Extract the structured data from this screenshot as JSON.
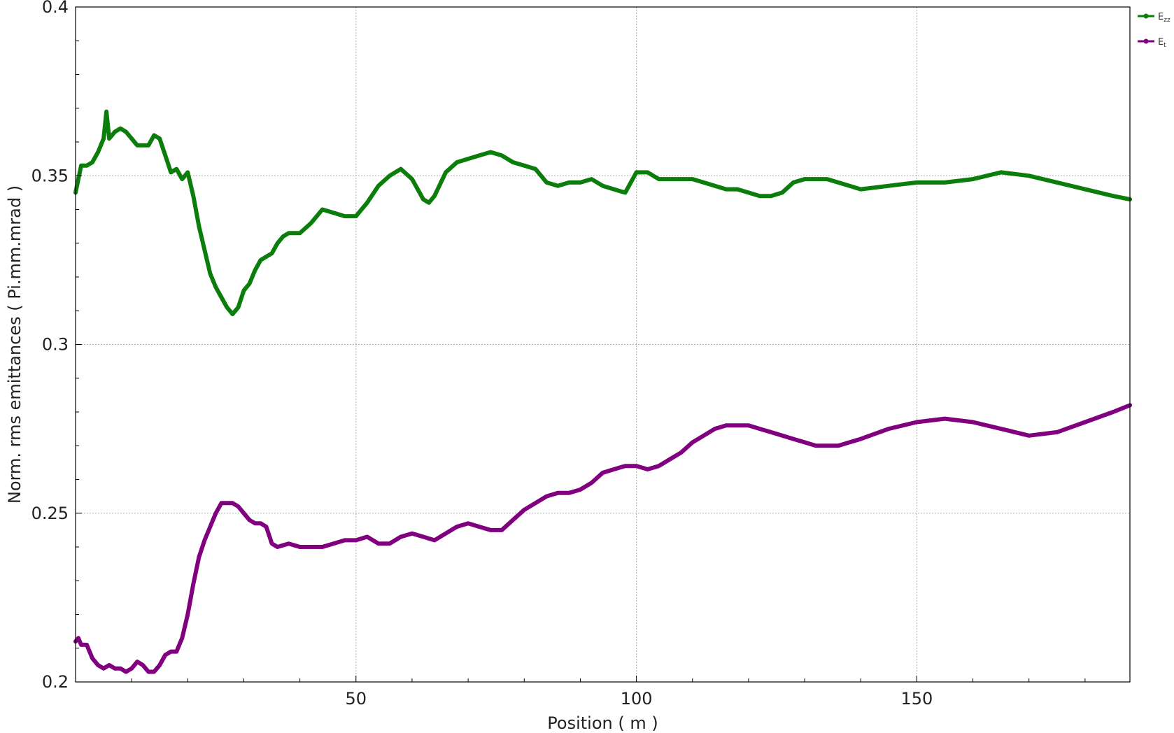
{
  "chart_data": {
    "type": "line",
    "title": "",
    "xlabel": "Position ( m )",
    "ylabel": "Norm. rms emittances ( Pi.mm.mrad )",
    "xlim": [
      0,
      188
    ],
    "ylim": [
      0.2,
      0.4
    ],
    "xticks": [
      50,
      100,
      150
    ],
    "xtick_labels": [
      "50",
      "100",
      "150"
    ],
    "yticks": [
      0.2,
      0.25,
      0.3,
      0.35,
      0.4
    ],
    "ytick_labels": [
      "0.2",
      "0.25",
      "0.3",
      "0.35",
      "0.4"
    ],
    "grid": true,
    "legend_position": "top-right",
    "series": [
      {
        "name": "E_zz",
        "legend_main": "E",
        "legend_sub": "zz",
        "color": "#0b7d0b",
        "x": [
          0,
          0.5,
          1,
          2,
          3,
          4,
          5,
          5.5,
          6,
          7,
          8,
          9,
          10,
          11,
          12,
          13,
          14,
          15,
          16,
          17,
          18,
          19,
          20,
          21,
          22,
          23,
          24,
          25,
          26,
          27,
          28,
          29,
          30,
          31,
          32,
          33,
          34,
          35,
          36,
          37,
          38,
          40,
          42,
          44,
          46,
          48,
          50,
          52,
          54,
          56,
          58,
          60,
          62,
          63,
          64,
          66,
          68,
          70,
          72,
          74,
          76,
          78,
          80,
          82,
          84,
          86,
          88,
          90,
          92,
          94,
          96,
          98,
          100,
          102,
          104,
          106,
          108,
          110,
          112,
          114,
          116,
          118,
          120,
          122,
          124,
          126,
          128,
          130,
          132,
          134,
          136,
          138,
          140,
          145,
          150,
          155,
          160,
          165,
          170,
          175,
          180,
          185,
          188
        ],
        "y": [
          0.345,
          0.349,
          0.353,
          0.353,
          0.354,
          0.357,
          0.361,
          0.369,
          0.361,
          0.363,
          0.364,
          0.363,
          0.361,
          0.359,
          0.359,
          0.359,
          0.362,
          0.361,
          0.356,
          0.351,
          0.352,
          0.349,
          0.351,
          0.344,
          0.335,
          0.328,
          0.321,
          0.317,
          0.314,
          0.311,
          0.309,
          0.311,
          0.316,
          0.318,
          0.322,
          0.325,
          0.326,
          0.327,
          0.33,
          0.332,
          0.333,
          0.333,
          0.336,
          0.34,
          0.339,
          0.338,
          0.338,
          0.342,
          0.347,
          0.35,
          0.352,
          0.349,
          0.343,
          0.342,
          0.344,
          0.351,
          0.354,
          0.355,
          0.356,
          0.357,
          0.356,
          0.354,
          0.353,
          0.352,
          0.348,
          0.347,
          0.348,
          0.348,
          0.349,
          0.347,
          0.346,
          0.345,
          0.351,
          0.351,
          0.349,
          0.349,
          0.349,
          0.349,
          0.348,
          0.347,
          0.346,
          0.346,
          0.345,
          0.344,
          0.344,
          0.345,
          0.348,
          0.349,
          0.349,
          0.349,
          0.348,
          0.347,
          0.346,
          0.347,
          0.348,
          0.348,
          0.349,
          0.351,
          0.35,
          0.348,
          0.346,
          0.344,
          0.343
        ]
      },
      {
        "name": "E_t",
        "legend_main": "E",
        "legend_sub": "t",
        "color": "#800080",
        "x": [
          0,
          0.5,
          1,
          2,
          3,
          4,
          5,
          6,
          7,
          8,
          9,
          10,
          11,
          12,
          13,
          14,
          15,
          16,
          17,
          18,
          19,
          20,
          21,
          22,
          23,
          24,
          25,
          26,
          27,
          28,
          29,
          30,
          31,
          32,
          33,
          34,
          35,
          36,
          38,
          40,
          42,
          44,
          46,
          48,
          50,
          52,
          54,
          56,
          58,
          60,
          62,
          64,
          66,
          68,
          70,
          72,
          74,
          76,
          78,
          80,
          82,
          84,
          86,
          88,
          90,
          92,
          94,
          96,
          98,
          100,
          102,
          104,
          106,
          108,
          110,
          112,
          114,
          116,
          118,
          120,
          122,
          124,
          126,
          128,
          130,
          132,
          134,
          136,
          138,
          140,
          145,
          150,
          155,
          160,
          165,
          170,
          175,
          180,
          185,
          188
        ],
        "y": [
          0.212,
          0.213,
          0.211,
          0.211,
          0.207,
          0.205,
          0.204,
          0.205,
          0.204,
          0.204,
          0.203,
          0.204,
          0.206,
          0.205,
          0.203,
          0.203,
          0.205,
          0.208,
          0.209,
          0.209,
          0.213,
          0.22,
          0.229,
          0.237,
          0.242,
          0.246,
          0.25,
          0.253,
          0.253,
          0.253,
          0.252,
          0.25,
          0.248,
          0.247,
          0.247,
          0.246,
          0.241,
          0.24,
          0.241,
          0.24,
          0.24,
          0.24,
          0.241,
          0.242,
          0.242,
          0.243,
          0.241,
          0.241,
          0.243,
          0.244,
          0.243,
          0.242,
          0.244,
          0.246,
          0.247,
          0.246,
          0.245,
          0.245,
          0.248,
          0.251,
          0.253,
          0.255,
          0.256,
          0.256,
          0.257,
          0.259,
          0.262,
          0.263,
          0.264,
          0.264,
          0.263,
          0.264,
          0.266,
          0.268,
          0.271,
          0.273,
          0.275,
          0.276,
          0.276,
          0.276,
          0.275,
          0.274,
          0.273,
          0.272,
          0.271,
          0.27,
          0.27,
          0.27,
          0.271,
          0.272,
          0.275,
          0.277,
          0.278,
          0.277,
          0.275,
          0.273,
          0.274,
          0.277,
          0.28,
          0.282
        ]
      }
    ]
  }
}
